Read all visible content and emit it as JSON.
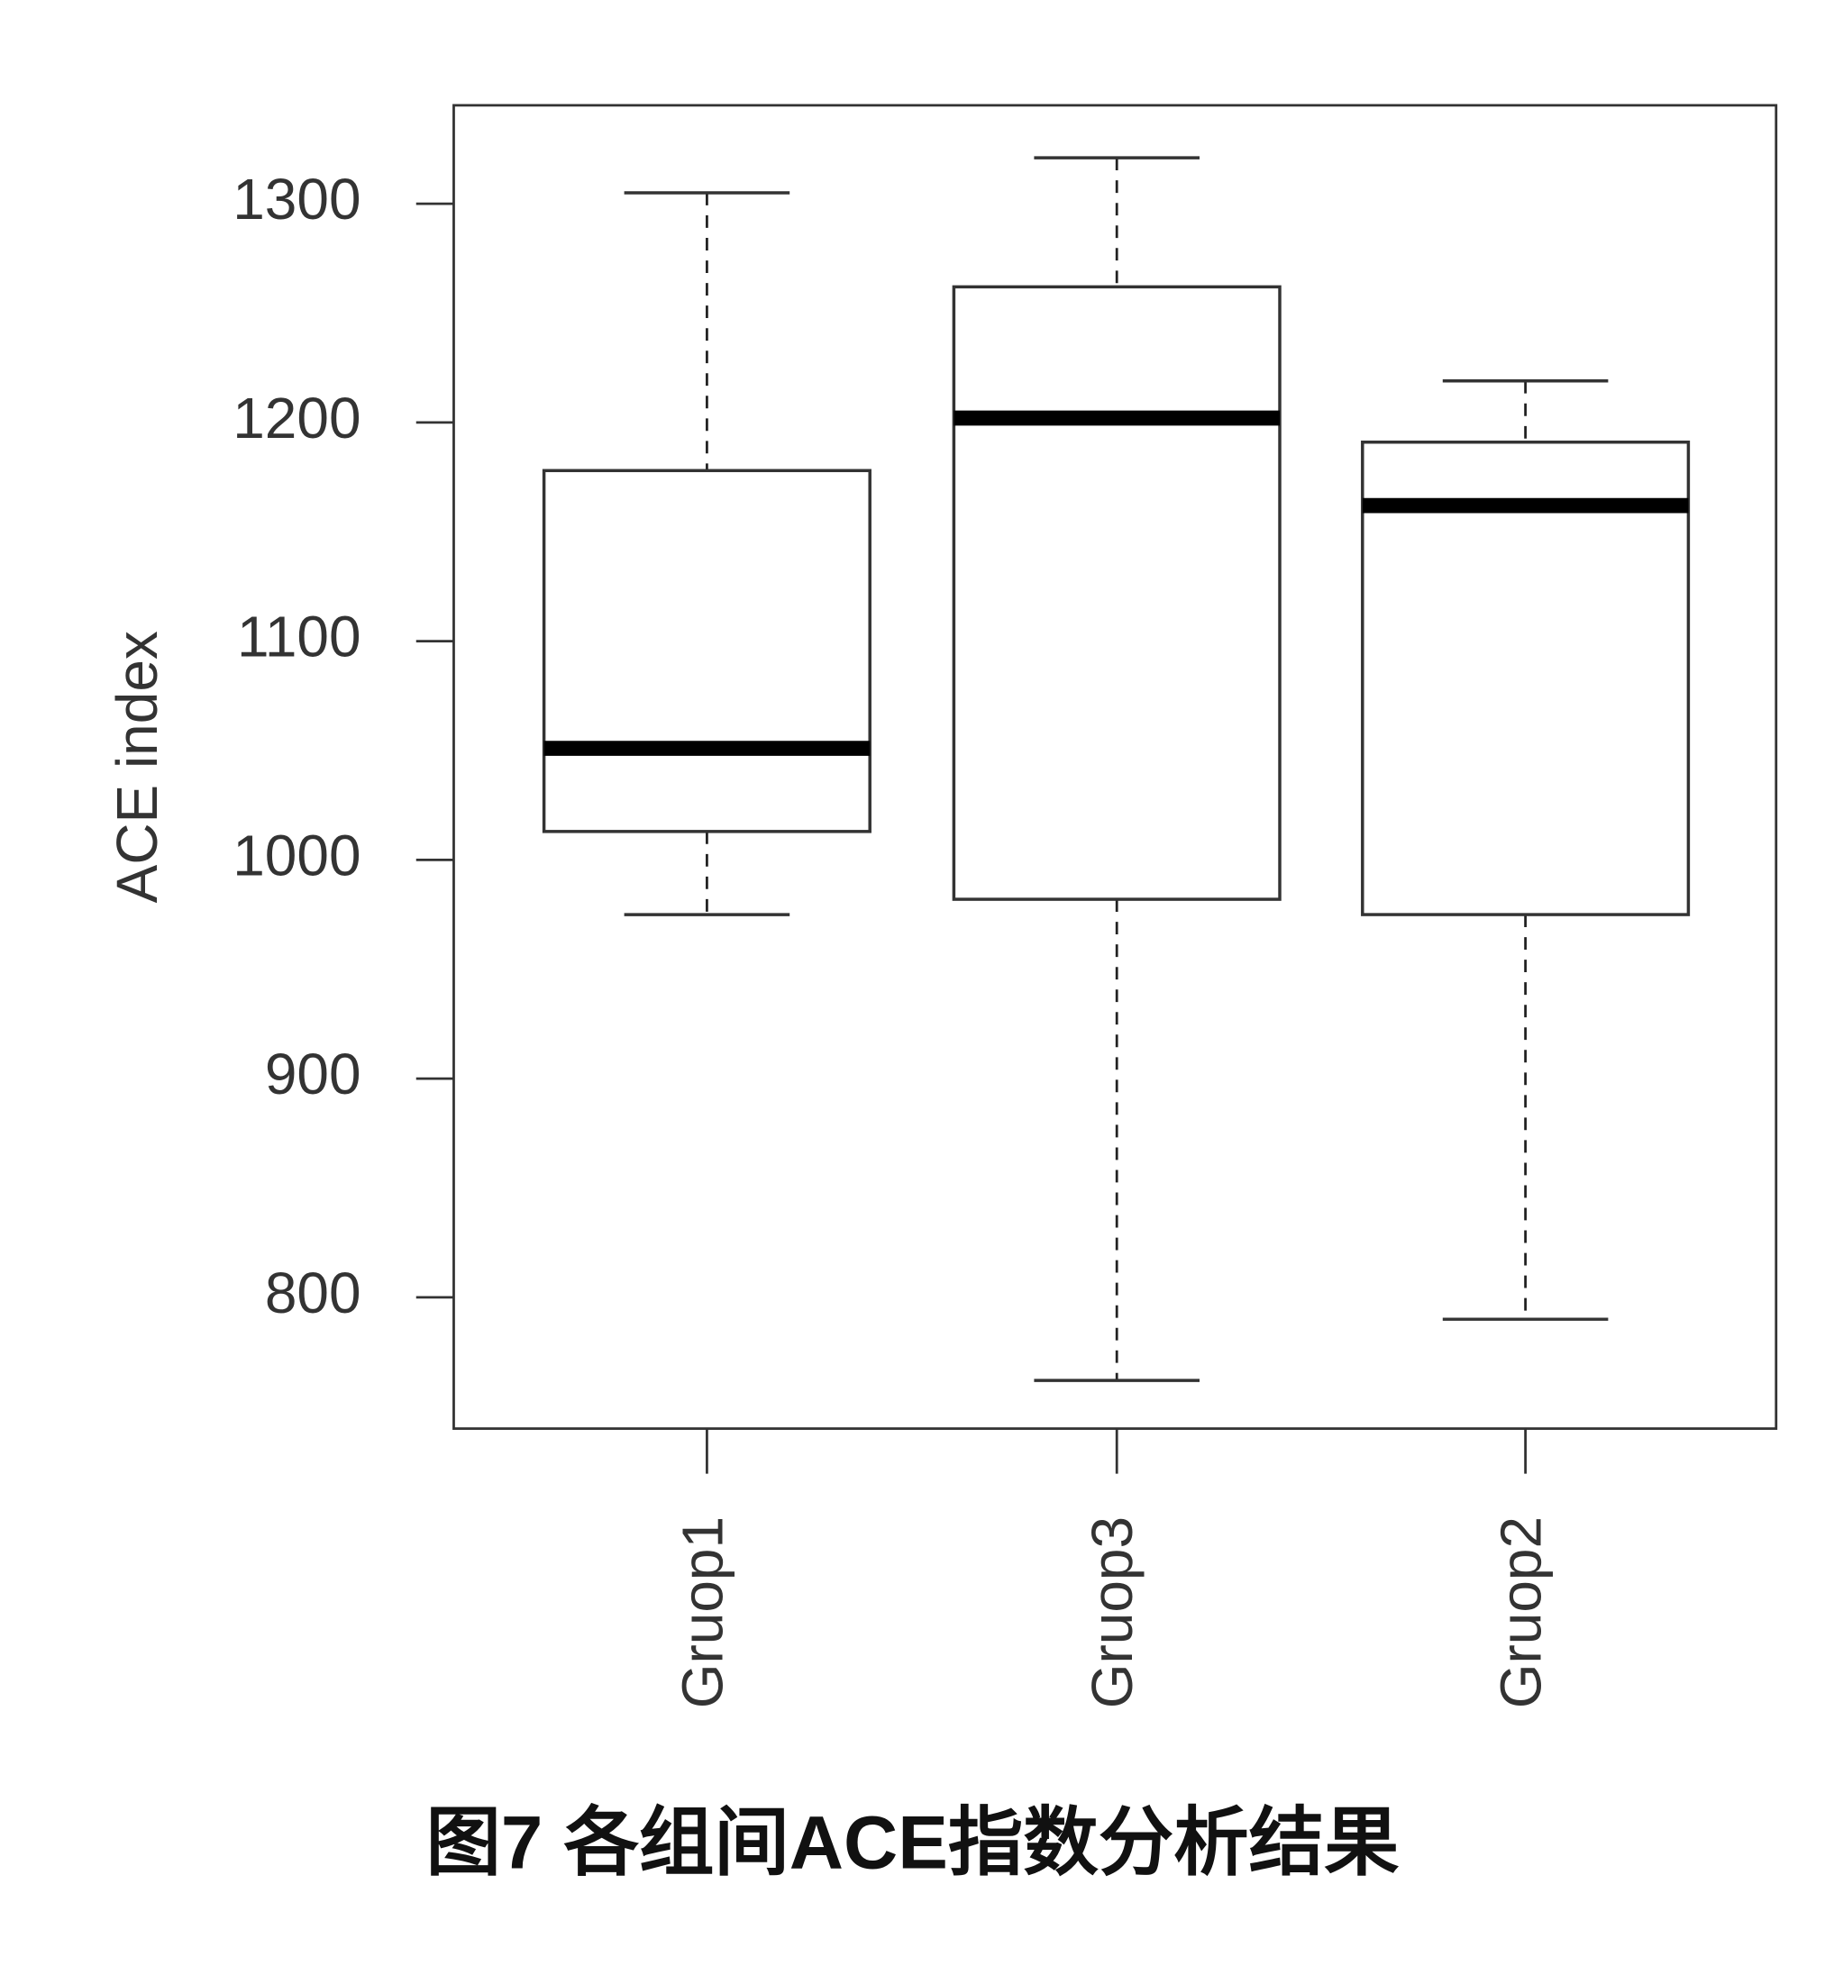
{
  "chart_data": {
    "type": "box",
    "caption": "图7 各组间ACE指数分析结果",
    "y_label": "ACE index",
    "categories": [
      "Gruop1",
      "Gruop3",
      "Gruop2"
    ],
    "min": [
      975,
      762,
      790
    ],
    "q1": [
      1013,
      982,
      975
    ],
    "median": [
      1051,
      1202,
      1162
    ],
    "q3": [
      1178,
      1262,
      1191
    ],
    "max": [
      1305,
      1321,
      1219
    ],
    "ylim": [
      740,
      1345
    ],
    "yticks": [
      800,
      900,
      1000,
      1100,
      1200,
      1300
    ]
  }
}
